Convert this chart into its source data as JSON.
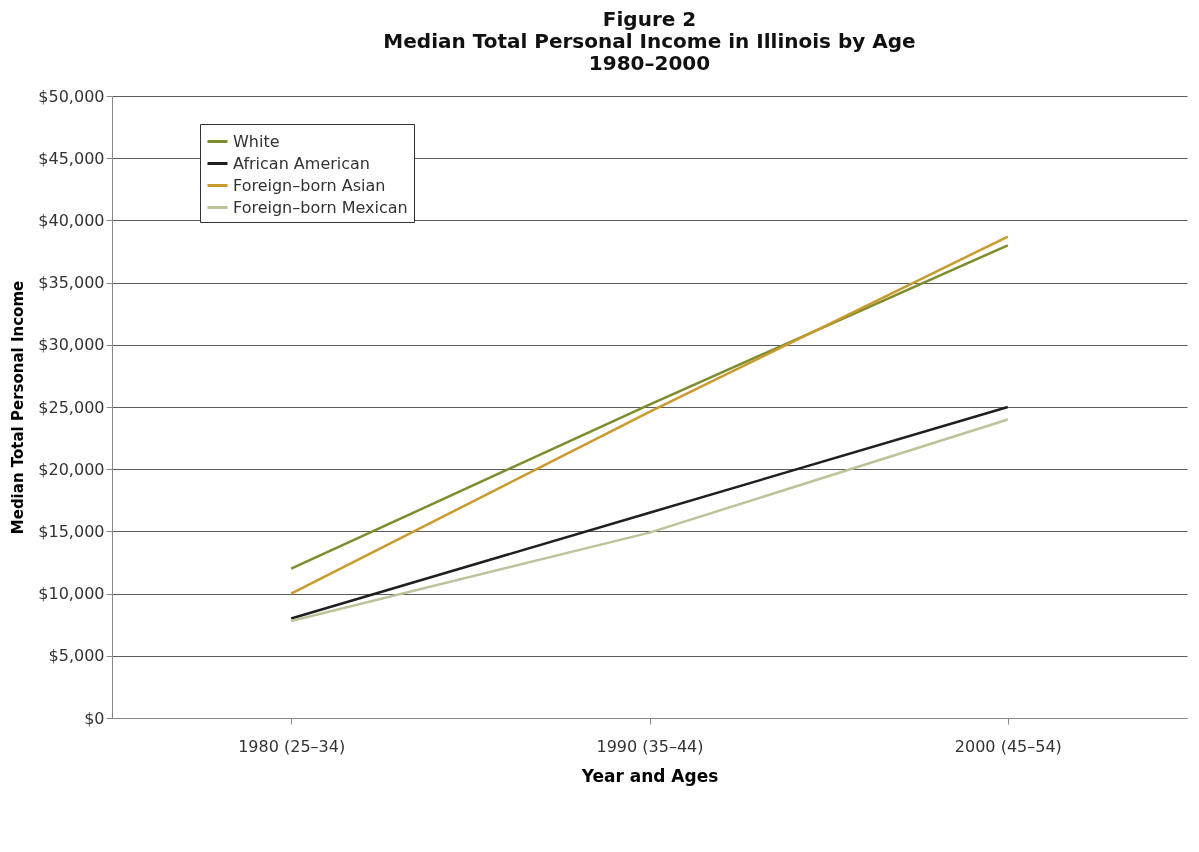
{
  "chart_data": {
    "type": "line",
    "title": "Figure 2\nMedian Total Personal Income in Illinois by Age\n1980–2000",
    "xlabel": "Year and  Ages",
    "ylabel": "Median Total Personal Income",
    "categories": [
      "1980  (25–34)",
      "1990  (35–44)",
      "2000  (45–54)"
    ],
    "series": [
      {
        "name": "White",
        "color": "#7f8c2d",
        "values": [
          12000,
          25200,
          38000
        ]
      },
      {
        "name": "African American",
        "color": "#1f1f1f",
        "values": [
          8000,
          16500,
          25000
        ]
      },
      {
        "name": "Foreign–born Asian",
        "color": "#c99a2e",
        "values": [
          10000,
          24600,
          38700
        ]
      },
      {
        "name": "Foreign–born Mexican",
        "color": "#bcc39a",
        "values": [
          7800,
          14900,
          24000
        ]
      }
    ],
    "ylim": [
      0,
      50000
    ],
    "yticks": [
      {
        "value": 0,
        "label": "$0"
      },
      {
        "value": 5000,
        "label": "$5,000"
      },
      {
        "value": 10000,
        "label": "$10,000"
      },
      {
        "value": 15000,
        "label": "$15,000"
      },
      {
        "value": 20000,
        "label": "$20,000"
      },
      {
        "value": 25000,
        "label": "$25,000"
      },
      {
        "value": 30000,
        "label": "$30,000"
      },
      {
        "value": 35000,
        "label": "$35,000"
      },
      {
        "value": 40000,
        "label": "$40,000"
      },
      {
        "value": 45000,
        "label": "$45,000"
      },
      {
        "value": 50000,
        "label": "$50,000"
      }
    ],
    "grid": "y",
    "legend": "top left",
    "marker": "none",
    "line_style": "solid"
  }
}
